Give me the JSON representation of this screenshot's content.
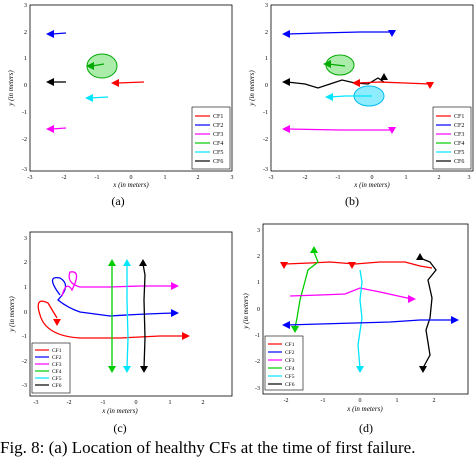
{
  "panels": [
    {
      "id": "a",
      "label": "(a)",
      "xlabel": "x (in meters)",
      "ylabel": "y (in meters)",
      "xticks": [
        "-3",
        "-2",
        "-1",
        "0",
        "1",
        "2",
        "3"
      ],
      "yticks": [
        "-3",
        "-2",
        "-1",
        "0",
        "1",
        "2",
        "3"
      ]
    },
    {
      "id": "b",
      "label": "(b)",
      "xlabel": "x (in meters)",
      "ylabel": "y (in meters)",
      "xticks": [
        "-3",
        "-2",
        "-1",
        "0",
        "1",
        "2",
        "3"
      ],
      "yticks": [
        "-3",
        "-2",
        "-1",
        "0",
        "1",
        "2",
        "3"
      ]
    },
    {
      "id": "c",
      "label": "(c)",
      "xlabel": "x (in meters)",
      "ylabel": "y (in meters)",
      "xticks": [
        "-3",
        "-2",
        "-1",
        "0",
        "1",
        "2"
      ],
      "yticks": [
        "-3",
        "-2",
        "-1",
        "0",
        "1",
        "2",
        "3"
      ]
    },
    {
      "id": "d",
      "label": "(d)",
      "xlabel": "x (in meters)",
      "ylabel": "y (in meters)",
      "xticks": [
        "-2",
        "-1",
        "0",
        "1",
        "2"
      ],
      "yticks": [
        "-3",
        "-2",
        "-1",
        "0",
        "1",
        "2",
        "3"
      ]
    }
  ],
  "legend": [
    "CF1",
    "CF2",
    "CF3",
    "CF4",
    "CF5",
    "CF6"
  ],
  "colors": {
    "CF1": "#ff0000",
    "CF2": "#0000ff",
    "CF3": "#ff00ff",
    "CF4": "#00cc00",
    "CF5": "#00e5ff",
    "CF6": "#000000"
  },
  "caption": "Fig. 8: (a) Location of healthy CFs at the time of first failure."
}
